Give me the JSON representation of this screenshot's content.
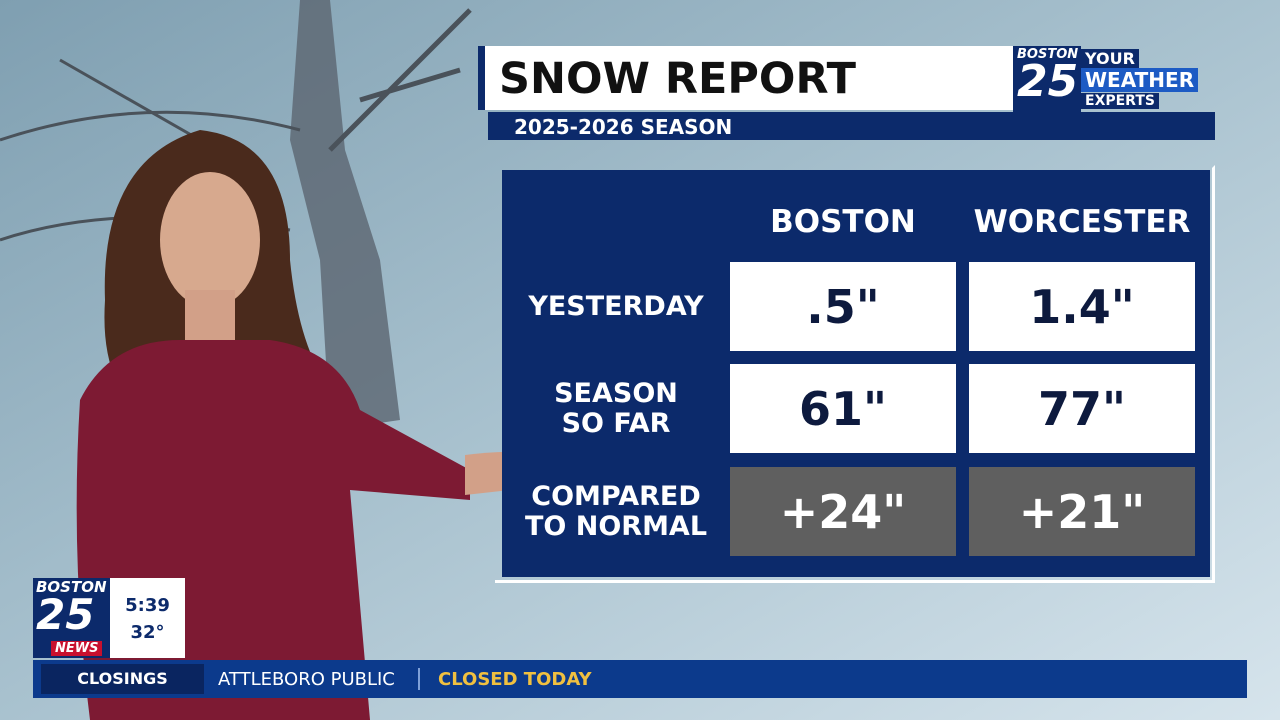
{
  "header": {
    "title": "SNOW REPORT",
    "subtitle": "2025-2026 SEASON"
  },
  "logo": {
    "city": "BOSTON",
    "number": "25",
    "tagline": [
      "YOUR",
      "WEATHER",
      "EXPERTS"
    ]
  },
  "table": {
    "columns": [
      "BOSTON",
      "WORCESTER"
    ],
    "rows": [
      {
        "label": [
          "YESTERDAY"
        ],
        "values": [
          ".5\"",
          "1.4\""
        ]
      },
      {
        "label": [
          "SEASON",
          "SO FAR"
        ],
        "values": [
          "61\"",
          "77\""
        ]
      },
      {
        "label": [
          "COMPARED",
          "TO NORMAL"
        ],
        "values": [
          "+24\"",
          "+21\""
        ]
      }
    ]
  },
  "station_bug": {
    "city": "BOSTON",
    "number": "25",
    "brand": "NEWS",
    "time": "5:39",
    "temperature": "32°"
  },
  "ticker": {
    "category": "CLOSINGS",
    "name": "ATTLEBORO PUBLIC",
    "status": "CLOSED TODAY"
  }
}
